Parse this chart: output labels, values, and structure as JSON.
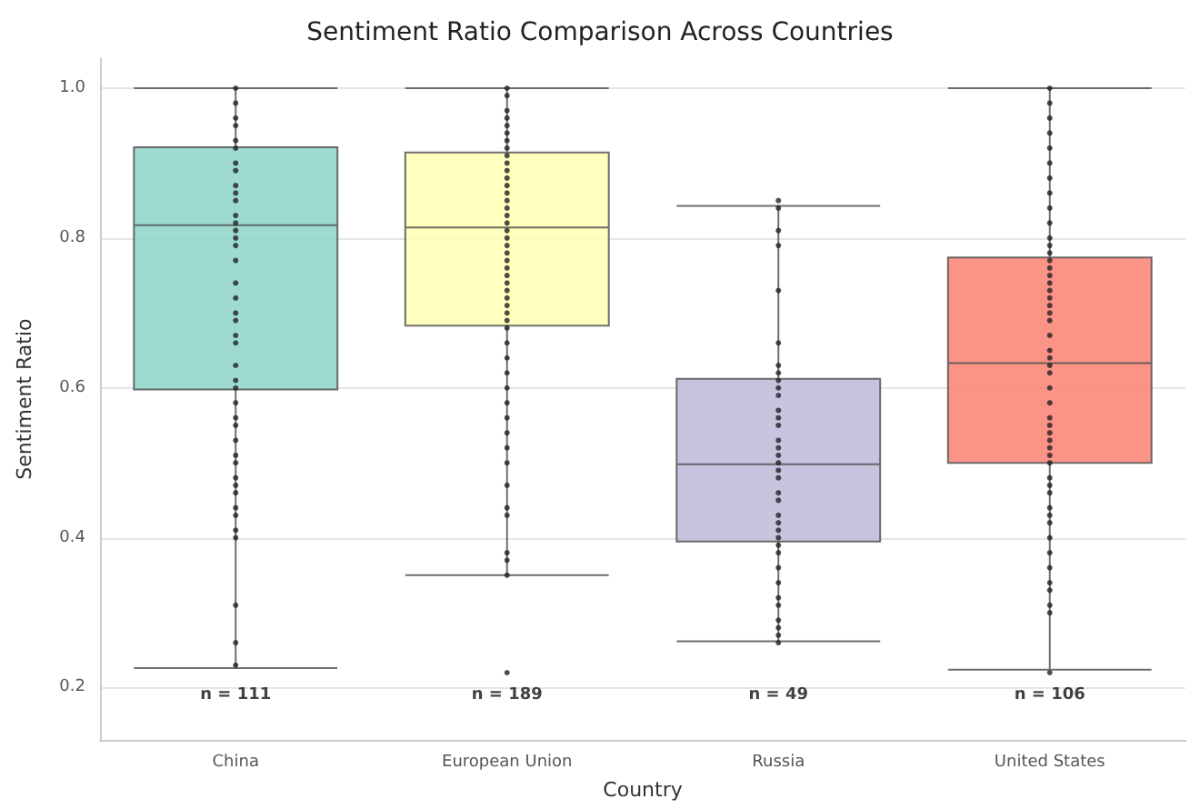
{
  "chart_data": {
    "type": "box",
    "title": "Sentiment Ratio Comparison Across Countries",
    "xlabel": "Country",
    "ylabel": "Sentiment Ratio",
    "categories": [
      "China",
      "European Union",
      "Russia",
      "United States"
    ],
    "ylim": [
      0.13,
      1.04
    ],
    "yticks": [
      0.2,
      0.4,
      0.6,
      0.8,
      {
        "value": 1,
        "label": "1.0"
      }
    ],
    "grid": "y",
    "series": [
      {
        "colors": [
          "#8dd3c7",
          "#ffffb3",
          "#bebada",
          "#fb8072"
        ],
        "boxes": [
          {
            "low": 0.226,
            "q1": 0.598,
            "median": 0.817,
            "q3": 0.921,
            "high": 1.0
          },
          {
            "low": 0.35,
            "q1": 0.683,
            "median": 0.814,
            "q3": 0.914,
            "high": 1.0
          },
          {
            "low": 0.262,
            "q1": 0.395,
            "median": 0.498,
            "q3": 0.612,
            "high": 0.843
          },
          {
            "low": 0.224,
            "q1": 0.5,
            "median": 0.633,
            "q3": 0.774,
            "high": 1.0
          }
        ]
      },
      {
        "type": "scatter",
        "color": "#222222",
        "marker": "circle",
        "x": [
          "China",
          "China",
          "China",
          "China",
          "China",
          "China",
          "China",
          "China",
          "China",
          "China",
          "China",
          "China",
          "China",
          "China",
          "China",
          "China",
          "China",
          "China",
          "China",
          "China",
          "China",
          "China",
          "China",
          "China",
          "China",
          "China",
          "China",
          "China",
          "China",
          "China",
          "China",
          "China",
          "China",
          "China",
          "China",
          "China",
          "China",
          "China",
          "China",
          "China",
          "China",
          "China"
        ],
        "values": [
          1.0,
          0.98,
          0.96,
          0.95,
          0.93,
          0.92,
          0.9,
          0.89,
          0.87,
          0.86,
          0.85,
          0.83,
          0.82,
          0.81,
          0.8,
          0.79,
          0.77,
          0.74,
          0.72,
          0.7,
          0.69,
          0.67,
          0.66,
          0.63,
          0.61,
          0.6,
          0.58,
          0.56,
          0.55,
          0.53,
          0.51,
          0.5,
          0.48,
          0.47,
          0.46,
          0.44,
          0.43,
          0.41,
          0.4,
          0.31,
          0.26,
          0.23
        ]
      },
      {
        "type": "scatter",
        "color": "#222222",
        "marker": "circle",
        "x": [
          "European Union",
          "European Union",
          "European Union",
          "European Union",
          "European Union",
          "European Union",
          "European Union",
          "European Union",
          "European Union",
          "European Union",
          "European Union",
          "European Union",
          "European Union",
          "European Union",
          "European Union",
          "European Union",
          "European Union",
          "European Union",
          "European Union",
          "European Union",
          "European Union",
          "European Union",
          "European Union",
          "European Union",
          "European Union",
          "European Union",
          "European Union",
          "European Union",
          "European Union",
          "European Union",
          "European Union",
          "European Union",
          "European Union",
          "European Union",
          "European Union",
          "European Union",
          "European Union",
          "European Union",
          "European Union",
          "European Union",
          "European Union",
          "European Union",
          "European Union",
          "European Union",
          "European Union",
          "European Union",
          "European Union",
          "European Union"
        ],
        "values": [
          1.0,
          0.99,
          0.97,
          0.96,
          0.95,
          0.94,
          0.93,
          0.92,
          0.91,
          0.9,
          0.89,
          0.88,
          0.87,
          0.86,
          0.85,
          0.84,
          0.83,
          0.82,
          0.81,
          0.8,
          0.79,
          0.78,
          0.77,
          0.76,
          0.75,
          0.74,
          0.73,
          0.72,
          0.71,
          0.7,
          0.69,
          0.68,
          0.66,
          0.64,
          0.62,
          0.6,
          0.58,
          0.56,
          0.54,
          0.52,
          0.5,
          0.47,
          0.44,
          0.43,
          0.38,
          0.37,
          0.35,
          0.22
        ]
      },
      {
        "type": "scatter",
        "color": "#222222",
        "marker": "circle",
        "x": [
          "Russia",
          "Russia",
          "Russia",
          "Russia",
          "Russia",
          "Russia",
          "Russia",
          "Russia",
          "Russia",
          "Russia",
          "Russia",
          "Russia",
          "Russia",
          "Russia",
          "Russia",
          "Russia",
          "Russia",
          "Russia",
          "Russia",
          "Russia",
          "Russia",
          "Russia",
          "Russia",
          "Russia",
          "Russia",
          "Russia",
          "Russia",
          "Russia",
          "Russia",
          "Russia",
          "Russia",
          "Russia",
          "Russia",
          "Russia",
          "Russia",
          "Russia"
        ],
        "values": [
          0.85,
          0.84,
          0.81,
          0.79,
          0.73,
          0.66,
          0.63,
          0.62,
          0.61,
          0.6,
          0.59,
          0.57,
          0.56,
          0.55,
          0.53,
          0.52,
          0.51,
          0.5,
          0.49,
          0.48,
          0.46,
          0.45,
          0.43,
          0.42,
          0.41,
          0.4,
          0.39,
          0.38,
          0.36,
          0.34,
          0.32,
          0.31,
          0.29,
          0.28,
          0.27,
          0.26
        ]
      },
      {
        "type": "scatter",
        "color": "#222222",
        "marker": "circle",
        "x": [
          "United States",
          "United States",
          "United States",
          "United States",
          "United States",
          "United States",
          "United States",
          "United States",
          "United States",
          "United States",
          "United States",
          "United States",
          "United States",
          "United States",
          "United States",
          "United States",
          "United States",
          "United States",
          "United States",
          "United States",
          "United States",
          "United States",
          "United States",
          "United States",
          "United States",
          "United States",
          "United States",
          "United States",
          "United States",
          "United States",
          "United States",
          "United States",
          "United States",
          "United States",
          "United States",
          "United States",
          "United States",
          "United States",
          "United States",
          "United States",
          "United States",
          "United States",
          "United States",
          "United States",
          "United States",
          "United States",
          "United States",
          "United States",
          "United States",
          "United States"
        ],
        "values": [
          1.0,
          0.98,
          0.96,
          0.94,
          0.92,
          0.9,
          0.88,
          0.86,
          0.84,
          0.82,
          0.8,
          0.79,
          0.78,
          0.77,
          0.76,
          0.75,
          0.74,
          0.73,
          0.72,
          0.71,
          0.7,
          0.69,
          0.67,
          0.65,
          0.64,
          0.63,
          0.62,
          0.6,
          0.58,
          0.56,
          0.55,
          0.54,
          0.53,
          0.52,
          0.51,
          0.5,
          0.48,
          0.47,
          0.46,
          0.44,
          0.43,
          0.42,
          0.4,
          0.38,
          0.36,
          0.34,
          0.33,
          0.31,
          0.3,
          0.22
        ]
      }
    ],
    "annotations": [
      "n = 111",
      "n = 189",
      "n = 49",
      "n = 106"
    ]
  }
}
